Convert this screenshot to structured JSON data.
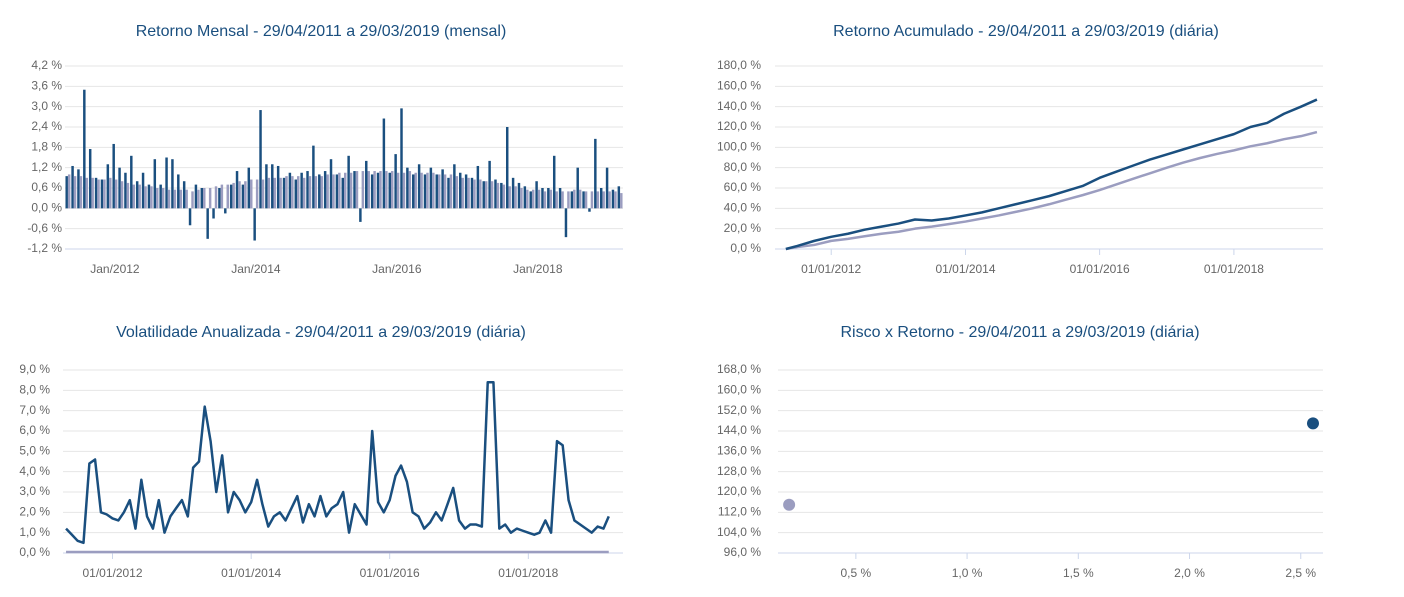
{
  "chart_data": [
    {
      "type": "bar",
      "title": "Retorno Mensal - 29/04/2011 a 29/03/2019 (mensal)",
      "categories": [
        null,
        null,
        null,
        null,
        null,
        null,
        null,
        null,
        "Jan/2012",
        null,
        null,
        null,
        null,
        null,
        null,
        null,
        null,
        null,
        null,
        null,
        null,
        null,
        null,
        null,
        null,
        null,
        null,
        null,
        null,
        null,
        null,
        null,
        "Jan/2014",
        null,
        null,
        null,
        null,
        null,
        null,
        null,
        null,
        null,
        null,
        null,
        null,
        null,
        null,
        null,
        null,
        null,
        null,
        null,
        null,
        null,
        null,
        null,
        "Jan/2016",
        null,
        null,
        null,
        null,
        null,
        null,
        null,
        null,
        null,
        null,
        null,
        null,
        null,
        null,
        null,
        null,
        null,
        null,
        null,
        null,
        null,
        null,
        null,
        "Jan/2018",
        null,
        null,
        null,
        null,
        null,
        null,
        null,
        null,
        null,
        null,
        null,
        null,
        null,
        null
      ],
      "series": [
        {
          "color": "#1a4f7f",
          "values": [
            0.95,
            1.25,
            1.15,
            3.5,
            1.75,
            0.9,
            0.85,
            1.3,
            1.9,
            1.2,
            1.05,
            1.55,
            0.8,
            1.05,
            0.7,
            1.45,
            0.7,
            1.5,
            1.45,
            1.0,
            0.8,
            -0.5,
            0.7,
            0.6,
            -0.9,
            -0.3,
            0.6,
            -0.15,
            0.7,
            1.1,
            0.7,
            1.2,
            -0.95,
            2.9,
            1.3,
            1.3,
            1.25,
            0.9,
            1.05,
            0.85,
            1.05,
            1.1,
            1.85,
            1.0,
            1.1,
            1.45,
            1.0,
            0.9,
            1.55,
            1.1,
            -0.4,
            1.4,
            1.0,
            1.05,
            2.65,
            1.05,
            1.6,
            2.95,
            1.2,
            1.0,
            1.3,
            1.0,
            1.2,
            1.0,
            1.15,
            0.9,
            1.3,
            1.05,
            1.0,
            0.9,
            1.25,
            0.8,
            1.4,
            0.85,
            0.75,
            2.4,
            0.9,
            0.75,
            0.65,
            0.5,
            0.8,
            0.6,
            0.6,
            1.55,
            0.6,
            -0.85,
            0.5,
            1.2,
            0.5,
            -0.1,
            2.05,
            0.6,
            1.2,
            0.55,
            0.65
          ]
        },
        {
          "color": "#9b9dc0",
          "values": [
            1.0,
            0.95,
            0.95,
            0.9,
            0.9,
            0.85,
            0.85,
            0.9,
            0.85,
            0.8,
            0.75,
            0.7,
            0.7,
            0.65,
            0.65,
            0.6,
            0.6,
            0.55,
            0.55,
            0.55,
            0.55,
            0.5,
            0.55,
            0.6,
            0.6,
            0.65,
            0.7,
            0.7,
            0.75,
            0.8,
            0.8,
            0.85,
            0.85,
            0.85,
            0.9,
            0.9,
            0.9,
            0.95,
            0.95,
            0.95,
            0.9,
            0.95,
            0.95,
            0.95,
            1.0,
            1.0,
            1.05,
            1.05,
            1.05,
            1.1,
            1.1,
            1.1,
            1.1,
            1.1,
            1.1,
            1.1,
            1.05,
            1.05,
            1.1,
            1.05,
            1.05,
            1.05,
            1.05,
            1.0,
            1.0,
            1.0,
            0.95,
            0.9,
            0.9,
            0.85,
            0.85,
            0.8,
            0.8,
            0.75,
            0.7,
            0.65,
            0.65,
            0.6,
            0.55,
            0.55,
            0.55,
            0.5,
            0.55,
            0.5,
            0.5,
            0.5,
            0.55,
            0.55,
            0.5,
            0.5,
            0.5,
            0.5,
            0.5,
            0.5,
            0.45
          ]
        }
      ],
      "ylim": [
        -1.2,
        4.2
      ],
      "yticks": [
        {
          "value": -1.2,
          "label": "-1,2 %"
        },
        {
          "value": -0.6,
          "label": "-0,6 %"
        },
        {
          "value": 0,
          "label": "0,0 %"
        },
        {
          "value": 0.6,
          "label": "0,6 %"
        },
        {
          "value": 1.2,
          "label": "1,2 %"
        },
        {
          "value": 1.8,
          "label": "1,8 %"
        },
        {
          "value": 2.4,
          "label": "2,4 %"
        },
        {
          "value": 3.0,
          "label": "3,0 %"
        },
        {
          "value": 3.6,
          "label": "3,6 %"
        },
        {
          "value": 4.2,
          "label": "4,2 %"
        }
      ],
      "grid": true
    },
    {
      "type": "line",
      "title": "Retorno Acumulado - 29/04/2011 a 29/03/2019 (diária)",
      "x": [
        "2011-04-29",
        "2011-07-01",
        "2011-10-01",
        "2012-01-01",
        "2012-04-01",
        "2012-07-01",
        "2012-10-01",
        "2013-01-01",
        "2013-04-01",
        "2013-07-01",
        "2013-10-01",
        "2014-01-01",
        "2014-04-01",
        "2014-07-01",
        "2014-10-01",
        "2015-01-01",
        "2015-04-01",
        "2015-07-01",
        "2015-10-01",
        "2016-01-01",
        "2016-04-01",
        "2016-07-01",
        "2016-10-01",
        "2017-01-01",
        "2017-04-01",
        "2017-07-01",
        "2017-10-01",
        "2018-01-01",
        "2018-04-01",
        "2018-07-01",
        "2018-10-01",
        "2019-01-01",
        "2019-03-29"
      ],
      "series": [
        {
          "color": "#1a4f7f",
          "values": [
            0,
            3,
            8,
            12,
            15,
            19,
            22,
            25,
            29,
            28,
            30,
            33,
            36,
            40,
            44,
            48,
            52,
            57,
            62,
            70,
            76,
            82,
            88,
            93,
            98,
            103,
            108,
            113,
            120,
            124,
            133,
            140,
            147
          ]
        },
        {
          "color": "#9b9dc0",
          "values": [
            0,
            2,
            4,
            8,
            10,
            12.5,
            15,
            17,
            20,
            22,
            24.5,
            27,
            30,
            33,
            36.5,
            40,
            44,
            48.5,
            53,
            58,
            63.5,
            69,
            74.5,
            80,
            85,
            89.5,
            93.5,
            97,
            101,
            104,
            108,
            111,
            115
          ]
        }
      ],
      "xlim": [
        "2011-03-01",
        "2019-05-01"
      ],
      "xticks": [
        {
          "value": "2012-01-01",
          "label": "01/01/2012"
        },
        {
          "value": "2014-01-01",
          "label": "01/01/2014"
        },
        {
          "value": "2016-01-01",
          "label": "01/01/2016"
        },
        {
          "value": "2018-01-01",
          "label": "01/01/2018"
        }
      ],
      "ylim": [
        0,
        180
      ],
      "yticks": [
        {
          "value": 0,
          "label": "0,0 %"
        },
        {
          "value": 20,
          "label": "20,0 %"
        },
        {
          "value": 40,
          "label": "40,0 %"
        },
        {
          "value": 60,
          "label": "60,0 %"
        },
        {
          "value": 80,
          "label": "80,0 %"
        },
        {
          "value": 100,
          "label": "100,0 %"
        },
        {
          "value": 120,
          "label": "120,0 %"
        },
        {
          "value": 140,
          "label": "140,0 %"
        },
        {
          "value": 160,
          "label": "160,0 %"
        },
        {
          "value": 180,
          "label": "180,0 %"
        }
      ],
      "grid": true
    },
    {
      "type": "line",
      "title": "Volatilidade Anualizada - 29/04/2011 a 29/03/2019 (diária)",
      "x": [
        "2011-05-01",
        "2011-06-01",
        "2011-07-01",
        "2011-08-01",
        "2011-09-01",
        "2011-10-01",
        "2011-11-01",
        "2011-12-01",
        "2012-01-01",
        "2012-02-01",
        "2012-03-01",
        "2012-04-01",
        "2012-05-01",
        "2012-06-01",
        "2012-07-01",
        "2012-08-01",
        "2012-09-01",
        "2012-10-01",
        "2012-11-01",
        "2012-12-01",
        "2013-01-01",
        "2013-02-01",
        "2013-03-01",
        "2013-04-01",
        "2013-05-01",
        "2013-06-01",
        "2013-07-01",
        "2013-08-01",
        "2013-09-01",
        "2013-10-01",
        "2013-11-01",
        "2013-12-01",
        "2014-01-01",
        "2014-02-01",
        "2014-03-01",
        "2014-04-01",
        "2014-05-01",
        "2014-06-01",
        "2014-07-01",
        "2014-08-01",
        "2014-09-01",
        "2014-10-01",
        "2014-11-01",
        "2014-12-01",
        "2015-01-01",
        "2015-02-01",
        "2015-03-01",
        "2015-04-01",
        "2015-05-01",
        "2015-06-01",
        "2015-07-01",
        "2015-08-01",
        "2015-09-01",
        "2015-10-01",
        "2015-11-01",
        "2015-12-01",
        "2016-01-01",
        "2016-02-01",
        "2016-03-01",
        "2016-04-01",
        "2016-05-01",
        "2016-06-01",
        "2016-07-01",
        "2016-08-01",
        "2016-09-01",
        "2016-10-01",
        "2016-11-01",
        "2016-12-01",
        "2017-01-01",
        "2017-02-01",
        "2017-03-01",
        "2017-04-01",
        "2017-05-01",
        "2017-06-01",
        "2017-07-01",
        "2017-08-01",
        "2017-09-01",
        "2017-10-01",
        "2017-11-01",
        "2017-12-01",
        "2018-01-01",
        "2018-02-01",
        "2018-03-01",
        "2018-04-01",
        "2018-05-01",
        "2018-06-01",
        "2018-07-01",
        "2018-08-01",
        "2018-09-01",
        "2018-10-01",
        "2018-11-01",
        "2018-12-01",
        "2019-01-01",
        "2019-02-01",
        "2019-03-01"
      ],
      "series": [
        {
          "color": "#1a4f7f",
          "values": [
            1.2,
            0.9,
            0.6,
            0.5,
            4.4,
            4.6,
            2.0,
            1.9,
            1.7,
            1.6,
            2.0,
            2.6,
            1.2,
            3.6,
            1.8,
            1.2,
            2.6,
            1.0,
            1.8,
            2.2,
            2.6,
            1.8,
            4.2,
            4.5,
            7.2,
            5.5,
            3.0,
            4.8,
            2.0,
            3.0,
            2.6,
            2.0,
            2.5,
            3.6,
            2.4,
            1.3,
            1.8,
            2.0,
            1.6,
            2.2,
            2.8,
            1.5,
            2.4,
            1.8,
            2.8,
            1.8,
            2.2,
            2.4,
            3.0,
            1.0,
            2.4,
            1.9,
            1.4,
            6.0,
            2.5,
            2.0,
            2.6,
            3.8,
            4.3,
            3.5,
            2.0,
            1.8,
            1.2,
            1.5,
            2.0,
            1.6,
            2.4,
            3.2,
            1.6,
            1.2,
            1.4,
            1.4,
            1.3,
            8.4,
            8.4,
            1.2,
            1.4,
            1.0,
            1.2,
            1.1,
            1.0,
            0.9,
            1.0,
            1.6,
            1.0,
            5.5,
            5.3,
            2.6,
            1.6,
            1.4,
            1.2,
            1.0,
            1.3,
            1.2,
            1.8
          ]
        },
        {
          "color": "#9b9dc0",
          "values": [
            0.05,
            0.05,
            0.05,
            0.05,
            0.05,
            0.05,
            0.05,
            0.05,
            0.05,
            0.05,
            0.05,
            0.05,
            0.05,
            0.05,
            0.05,
            0.05,
            0.05,
            0.05,
            0.05,
            0.05,
            0.05,
            0.05,
            0.05,
            0.05,
            0.05,
            0.05,
            0.05,
            0.05,
            0.05,
            0.05,
            0.05,
            0.05,
            0.05,
            0.05,
            0.05,
            0.05,
            0.05,
            0.05,
            0.05,
            0.05,
            0.05,
            0.05,
            0.05,
            0.05,
            0.05,
            0.05,
            0.05,
            0.05,
            0.05,
            0.05,
            0.05,
            0.05,
            0.05,
            0.05,
            0.05,
            0.05,
            0.05,
            0.05,
            0.05,
            0.05,
            0.05,
            0.05,
            0.05,
            0.05,
            0.05,
            0.05,
            0.05,
            0.05,
            0.05,
            0.05,
            0.05,
            0.05,
            0.05,
            0.05,
            0.05,
            0.05,
            0.05,
            0.05,
            0.05,
            0.05,
            0.05,
            0.05,
            0.05,
            0.05,
            0.05,
            0.05,
            0.05,
            0.05,
            0.05,
            0.05,
            0.05,
            0.05,
            0.05,
            0.05,
            0.05
          ]
        }
      ],
      "xlim": [
        "2011-04-15",
        "2019-05-15"
      ],
      "xticks": [
        {
          "value": "2012-01-01",
          "label": "01/01/2012"
        },
        {
          "value": "2014-01-01",
          "label": "01/01/2014"
        },
        {
          "value": "2016-01-01",
          "label": "01/01/2016"
        },
        {
          "value": "2018-01-01",
          "label": "01/01/2018"
        }
      ],
      "ylim": [
        0,
        9
      ],
      "yticks": [
        {
          "value": 0,
          "label": "0,0 %"
        },
        {
          "value": 1,
          "label": "1,0 %"
        },
        {
          "value": 2,
          "label": "2,0 %"
        },
        {
          "value": 3,
          "label": "3,0 %"
        },
        {
          "value": 4,
          "label": "4,0 %"
        },
        {
          "value": 5,
          "label": "5,0 %"
        },
        {
          "value": 6,
          "label": "6,0 %"
        },
        {
          "value": 7,
          "label": "7,0 %"
        },
        {
          "value": 8,
          "label": "8,0 %"
        },
        {
          "value": 9,
          "label": "9,0 %"
        }
      ],
      "grid": true
    },
    {
      "type": "scatter",
      "title": "Risco x Retorno - 29/04/2011 a 29/03/2019 (diária)",
      "series": [
        {
          "color": "#9b9dc0",
          "x": [
            0.2
          ],
          "values": [
            115
          ]
        },
        {
          "color": "#1a4f7f",
          "x": [
            2.555
          ],
          "values": [
            147
          ]
        }
      ],
      "xlim": [
        0.15,
        2.6
      ],
      "xticks": [
        {
          "value": 0.5,
          "label": "0,5 %"
        },
        {
          "value": 1.0,
          "label": "1,0 %"
        },
        {
          "value": 1.5,
          "label": "1,5 %"
        },
        {
          "value": 2.0,
          "label": "2,0 %"
        },
        {
          "value": 2.5,
          "label": "2,5 %"
        }
      ],
      "ylim": [
        96,
        168
      ],
      "yticks": [
        {
          "value": 96,
          "label": "96,0 %"
        },
        {
          "value": 104,
          "label": "104,0 %"
        },
        {
          "value": 112,
          "label": "112,0 %"
        },
        {
          "value": 120,
          "label": "120,0 %"
        },
        {
          "value": 128,
          "label": "128,0 %"
        },
        {
          "value": 136,
          "label": "136,0 %"
        },
        {
          "value": 144,
          "label": "144,0 %"
        },
        {
          "value": 152,
          "label": "152,0 %"
        },
        {
          "value": 160,
          "label": "160,0 %"
        },
        {
          "value": 168,
          "label": "168,0 %"
        }
      ],
      "grid": true
    }
  ]
}
